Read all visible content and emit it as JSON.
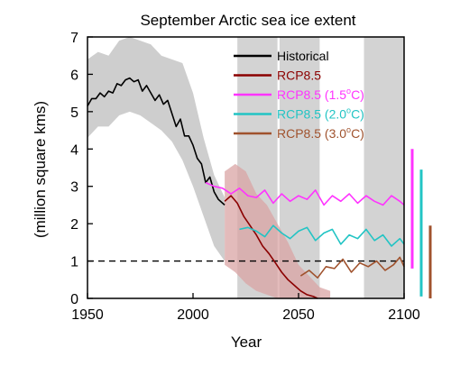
{
  "chart_data": {
    "type": "line",
    "title": "September Arctic sea ice extent",
    "xlabel": "Year",
    "ylabel": "(million square kms)",
    "xlim": [
      1950,
      2100
    ],
    "ylim": [
      0,
      7
    ],
    "xticks": [
      "1950",
      "2000",
      "2050",
      "2100"
    ],
    "yticks": [
      "0",
      "1",
      "2",
      "3",
      "4",
      "5",
      "6",
      "7"
    ],
    "grid": false,
    "legend_position": "top-right",
    "reference_line": {
      "y": 1,
      "style": "dashed"
    },
    "shaded_periods": [
      [
        2021,
        2040
      ],
      [
        2041,
        2060
      ],
      [
        2081,
        2100
      ]
    ],
    "uncertainty_bands": [
      {
        "series": "Historical",
        "color": "#bdbdbd",
        "x": [
          1950,
          1955,
          1960,
          1965,
          1970,
          1975,
          1980,
          1985,
          1990,
          1995,
          2000,
          2005,
          2010,
          2015
        ],
        "lower": [
          4.3,
          4.6,
          4.6,
          4.9,
          5.0,
          4.9,
          4.7,
          4.5,
          4.2,
          3.7,
          3.0,
          2.2,
          1.4,
          1.0
        ],
        "upper": [
          6.4,
          6.6,
          6.5,
          6.9,
          7.0,
          6.9,
          6.8,
          6.5,
          6.4,
          6.3,
          5.5,
          4.3,
          3.3,
          2.7
        ]
      },
      {
        "series": "RCP8.5",
        "color": "#d9a4a4",
        "x": [
          2015,
          2020,
          2025,
          2030,
          2035,
          2040,
          2045,
          2050,
          2055,
          2060,
          2065
        ],
        "lower": [
          0.9,
          0.7,
          0.4,
          0.2,
          0.1,
          0.0,
          0.0,
          0.0,
          0.0,
          0.0,
          0.0
        ],
        "upper": [
          3.4,
          3.6,
          3.4,
          2.8,
          2.5,
          2.0,
          1.5,
          0.9,
          0.6,
          0.3,
          0.2
        ]
      }
    ],
    "series": [
      {
        "name": "Historical",
        "color": "#000000",
        "x": [
          1950,
          1952,
          1954,
          1956,
          1958,
          1960,
          1962,
          1964,
          1966,
          1968,
          1970,
          1972,
          1974,
          1976,
          1978,
          1980,
          1982,
          1984,
          1986,
          1988,
          1990,
          1992,
          1994,
          1996,
          1998,
          2000,
          2002,
          2004,
          2006,
          2008,
          2010,
          2012,
          2014,
          2015
        ],
        "y": [
          5.15,
          5.35,
          5.35,
          5.5,
          5.4,
          5.55,
          5.5,
          5.75,
          5.7,
          5.85,
          5.9,
          5.8,
          5.85,
          5.55,
          5.7,
          5.5,
          5.3,
          5.45,
          5.2,
          5.3,
          4.95,
          4.6,
          4.8,
          4.35,
          4.35,
          4.1,
          3.75,
          3.6,
          3.1,
          3.25,
          2.85,
          2.65,
          2.55,
          2.5
        ]
      },
      {
        "name": "RCP8.5",
        "color": "#8b0000",
        "x": [
          2015,
          2018,
          2021,
          2024,
          2027,
          2030,
          2033,
          2036,
          2039,
          2042,
          2045,
          2048,
          2051,
          2054,
          2057,
          2059
        ],
        "y": [
          2.6,
          2.75,
          2.55,
          2.2,
          1.95,
          1.7,
          1.4,
          1.2,
          0.95,
          0.7,
          0.5,
          0.35,
          0.2,
          0.1,
          0.05,
          0.0
        ]
      },
      {
        "name": "RCP8.5 (1.5°C)",
        "color": "#ff33ff",
        "x": [
          2006,
          2010,
          2014,
          2018,
          2022,
          2026,
          2030,
          2034,
          2038,
          2042,
          2046,
          2050,
          2054,
          2058,
          2062,
          2066,
          2070,
          2074,
          2078,
          2082,
          2086,
          2090,
          2094,
          2098,
          2100
        ],
        "y": [
          3.1,
          3.0,
          2.95,
          2.8,
          2.95,
          2.75,
          2.7,
          2.9,
          2.55,
          2.8,
          2.6,
          2.75,
          2.65,
          2.9,
          2.5,
          2.75,
          2.6,
          2.8,
          2.55,
          2.75,
          2.6,
          2.5,
          2.75,
          2.6,
          2.5
        ]
      },
      {
        "name": "RCP8.5 (2.0°C)",
        "color": "#22c4c4",
        "x": [
          2022,
          2026,
          2030,
          2034,
          2038,
          2042,
          2046,
          2050,
          2054,
          2058,
          2062,
          2066,
          2070,
          2074,
          2078,
          2082,
          2086,
          2090,
          2094,
          2098,
          2100
        ],
        "y": [
          1.85,
          1.9,
          1.8,
          1.65,
          1.95,
          1.75,
          1.6,
          1.8,
          1.9,
          1.55,
          1.75,
          1.85,
          1.45,
          1.7,
          1.6,
          1.85,
          1.55,
          1.7,
          1.4,
          1.6,
          1.45
        ]
      },
      {
        "name": "RCP8.5 (3.0°C)",
        "color": "#a0522d",
        "x": [
          2051,
          2055,
          2059,
          2063,
          2067,
          2071,
          2075,
          2079,
          2083,
          2087,
          2091,
          2095,
          2098,
          2100
        ],
        "y": [
          0.6,
          0.75,
          0.55,
          0.85,
          0.8,
          1.05,
          0.7,
          0.95,
          0.85,
          1.0,
          0.75,
          0.9,
          1.1,
          0.85
        ]
      }
    ],
    "legend": [
      {
        "label": "Historical",
        "color": "#000000"
      },
      {
        "label": "RCP8.5",
        "color": "#8b0000"
      },
      {
        "label": "RCP8.5 (1.5",
        "sup": "o",
        "unit": "C)",
        "color": "#ff33ff"
      },
      {
        "label": "RCP8.5 (2.0",
        "sup": "o",
        "unit": "C)",
        "color": "#22c4c4"
      },
      {
        "label": "RCP8.5 (3.0",
        "sup": "o",
        "unit": "C)",
        "color": "#a0522d"
      }
    ],
    "range_bars": [
      {
        "series": "RCP8.5 (1.5°C)",
        "color": "#ff33ff",
        "low": 0.8,
        "high": 4.0
      },
      {
        "series": "RCP8.5 (2.0°C)",
        "color": "#22c4c4",
        "low": 0.05,
        "high": 3.45
      },
      {
        "series": "RCP8.5 (3.0°C)",
        "color": "#a0522d",
        "low": 0.0,
        "high": 1.95
      }
    ]
  }
}
